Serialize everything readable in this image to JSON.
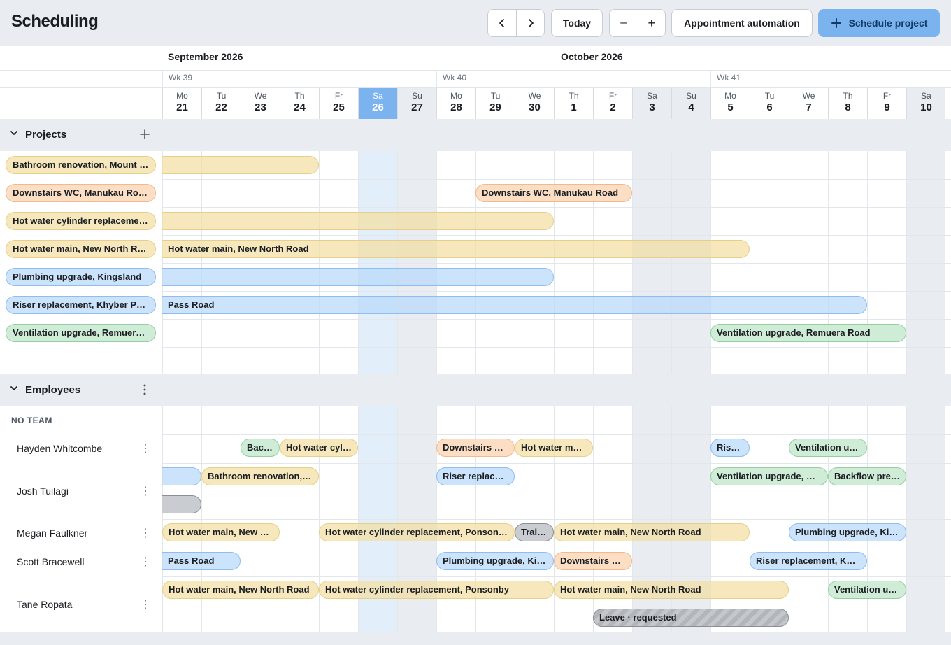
{
  "header": {
    "title": "Scheduling",
    "today_label": "Today",
    "zoom_out": "–",
    "zoom_in": "+",
    "automation_label": "Appointment automation",
    "schedule_label": "Schedule project"
  },
  "timeline": {
    "months": [
      "September 2026",
      "October 2026"
    ],
    "weeks": [
      "Wk 39",
      "Wk 40",
      "Wk 41"
    ],
    "days": [
      {
        "name": "Mo",
        "num": "21"
      },
      {
        "name": "Tu",
        "num": "22"
      },
      {
        "name": "We",
        "num": "23"
      },
      {
        "name": "Th",
        "num": "24"
      },
      {
        "name": "Fr",
        "num": "25"
      },
      {
        "name": "Sa",
        "num": "26"
      },
      {
        "name": "Su",
        "num": "27"
      },
      {
        "name": "Mo",
        "num": "28"
      },
      {
        "name": "Tu",
        "num": "29"
      },
      {
        "name": "We",
        "num": "30"
      },
      {
        "name": "Th",
        "num": "1"
      },
      {
        "name": "Fr",
        "num": "2"
      },
      {
        "name": "Sa",
        "num": "3"
      },
      {
        "name": "Su",
        "num": "4"
      },
      {
        "name": "Mo",
        "num": "5"
      },
      {
        "name": "Tu",
        "num": "6"
      },
      {
        "name": "We",
        "num": "7"
      },
      {
        "name": "Th",
        "num": "8"
      },
      {
        "name": "Fr",
        "num": "9"
      },
      {
        "name": "Sa",
        "num": "10"
      }
    ],
    "today_date": "26"
  },
  "projects": {
    "section_label": "Projects",
    "items": [
      {
        "name": "Bathroom renovation, Mount Eden",
        "color": "yellow",
        "bar_label": ""
      },
      {
        "name": "Downstairs WC, Manukau Road",
        "color": "orange",
        "bar_label": "Downstairs WC, Manukau Road"
      },
      {
        "name": "Hot water cylinder replacement, Ponsonby",
        "color": "yellow",
        "bar_label": ""
      },
      {
        "name": "Hot water main, New North Road",
        "color": "yellow",
        "bar_label": "Hot water main, New North Road"
      },
      {
        "name": "Plumbing upgrade, Kingsland",
        "color": "blue",
        "bar_label": ""
      },
      {
        "name": "Riser replacement, Khyber Pass Road",
        "color": "blue",
        "bar_label": "Pass Road"
      },
      {
        "name": "Ventilation upgrade, Remuera Road",
        "color": "green",
        "bar_label": "Ventilation upgrade, Remuera Road"
      }
    ]
  },
  "employees": {
    "section_label": "Employees",
    "team_label": "NO TEAM",
    "people": [
      {
        "name": "Hayden Whitcombe",
        "bars": [
          {
            "label": "Backflow prevention",
            "color": "green"
          },
          {
            "label": "Hot water cylinder replacement",
            "color": "yellow"
          },
          {
            "label": "Downstairs WC, Manukau Road",
            "color": "orange"
          },
          {
            "label": "Hot water main, New North Road",
            "color": "yellow"
          },
          {
            "label": "Riser replacement",
            "color": "blue"
          },
          {
            "label": "Ventilation upgrade, Remuera Road",
            "color": "green"
          }
        ]
      },
      {
        "name": "Josh Tuilagi",
        "bars": [
          {
            "label": "",
            "color": "blue"
          },
          {
            "label": "Bathroom renovation, Mount Eden",
            "color": "yellow"
          },
          {
            "label": "Riser replacement, Khyber Pass Road",
            "color": "blue"
          },
          {
            "label": "Ventilation upgrade, Remuera Road",
            "color": "green"
          },
          {
            "label": "Backflow prevention",
            "color": "green"
          },
          {
            "label": "",
            "color": "gray"
          }
        ]
      },
      {
        "name": "Megan Faulkner",
        "bars": [
          {
            "label": "Hot water main, New North Road",
            "color": "yellow"
          },
          {
            "label": "Hot water cylinder replacement, Ponsonby",
            "color": "yellow"
          },
          {
            "label": "Training",
            "color": "gray"
          },
          {
            "label": "Hot water main, New North Road",
            "color": "yellow"
          },
          {
            "label": "Plumbing upgrade, Kingsland",
            "color": "blue"
          }
        ]
      },
      {
        "name": "Scott Bracewell",
        "bars": [
          {
            "label": "Pass Road",
            "color": "blue"
          },
          {
            "label": "Plumbing upgrade, Kingsland",
            "color": "blue"
          },
          {
            "label": "Downstairs WC, Manukau Road",
            "color": "orange"
          },
          {
            "label": "Riser replacement, Khyber Pass Road",
            "color": "blue"
          }
        ]
      },
      {
        "name": "Tane Ropata",
        "bars": [
          {
            "label": "Hot water main, New North Road",
            "color": "yellow"
          },
          {
            "label": "Hot water cylinder replacement, Ponsonby",
            "color": "yellow"
          },
          {
            "label": "Hot water main, New North Road",
            "color": "yellow"
          },
          {
            "label": "Ventilation upgrade",
            "color": "green"
          },
          {
            "label": "Leave · requested",
            "color": "leave"
          }
        ]
      }
    ]
  },
  "colors": {
    "accent": "#7ab3ee",
    "yellow": "#f2dea0",
    "orange": "#fbd8ba",
    "blue": "#badafa",
    "green": "#c7e9cf",
    "weekend": "#e9ecf0"
  }
}
